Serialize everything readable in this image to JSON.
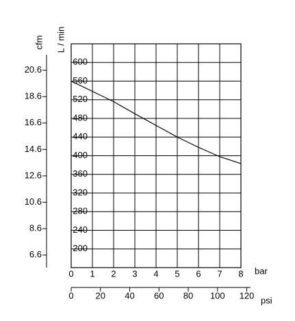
{
  "chart_data": {
    "type": "line",
    "x_label": "bar",
    "y_label": "L / min",
    "y2_label": "cfm",
    "x2_label": "psi",
    "x": [
      0,
      1,
      2,
      3,
      4,
      5,
      6,
      7,
      8
    ],
    "values": [
      560,
      538,
      516,
      490,
      465,
      440,
      418,
      398,
      383
    ],
    "color": "#000000",
    "xlim": [
      0,
      8
    ],
    "xticks": [
      0,
      1,
      2,
      3,
      4,
      5,
      6,
      7,
      8
    ],
    "ylim": [
      160,
      640
    ],
    "yticks": [
      200,
      240,
      280,
      320,
      360,
      400,
      440,
      480,
      520,
      560,
      600
    ],
    "y2lim": [
      5.65,
      22.6
    ],
    "y2ticks": [
      6.6,
      8.6,
      10.6,
      12.6,
      14.6,
      16.6,
      18.6,
      20.6
    ],
    "x2lim": [
      0,
      116
    ],
    "x2ticks": [
      0,
      20,
      40,
      60,
      80,
      100,
      120
    ],
    "grid": true
  }
}
